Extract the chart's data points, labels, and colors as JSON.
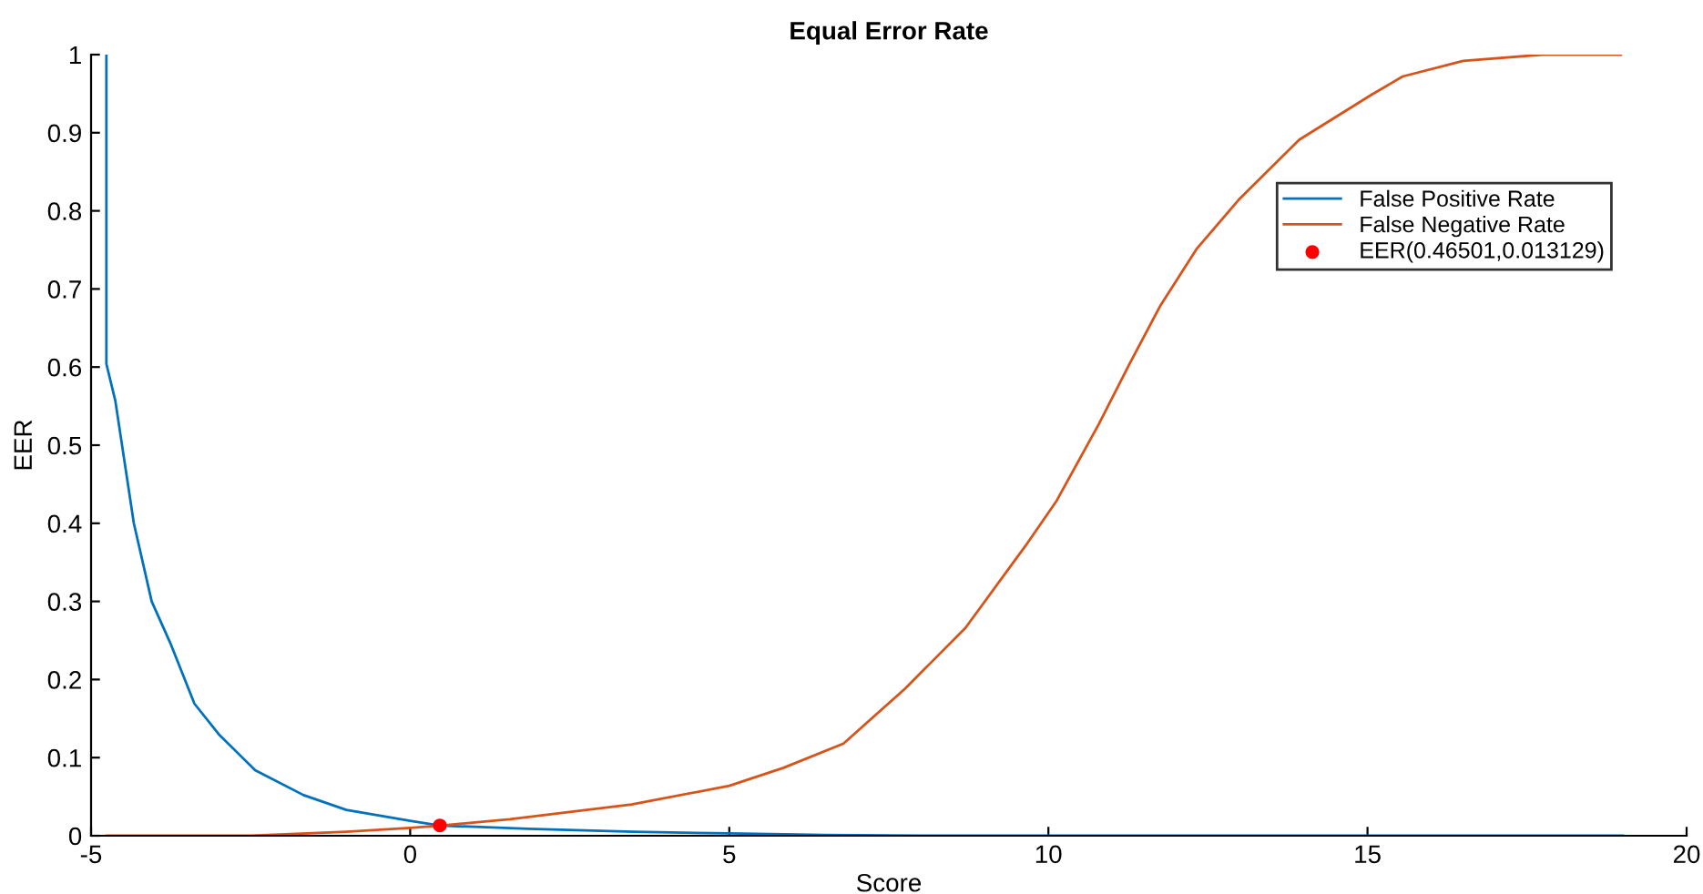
{
  "chart_data": {
    "type": "line",
    "title": "Equal Error Rate",
    "xlabel": "Score",
    "ylabel": "EER",
    "xlim": [
      -5,
      20
    ],
    "xticks": [
      -5,
      0,
      5,
      10,
      15,
      20
    ],
    "ylim": [
      0,
      1
    ],
    "yticks": [
      0,
      0.1,
      0.2,
      0.3,
      0.4,
      0.5,
      0.6,
      0.7,
      0.8,
      0.9,
      1
    ],
    "grid": false,
    "legend": "top right",
    "marker": "none",
    "line_style": "solid",
    "series": [
      {
        "name": "False Positive Rate",
        "color": "#0072bd",
        "x": [
          -4.76,
          -4.76,
          -4.62,
          -4.33,
          -4.05,
          -3.76,
          -3.38,
          -3.0,
          -2.43,
          -1.67,
          -1.0,
          0,
          0.47,
          1.85,
          3.5,
          5,
          6.5,
          8,
          12,
          19
        ],
        "values": [
          1.0,
          0.604,
          0.557,
          0.4,
          0.3,
          0.247,
          0.169,
          0.13,
          0.084,
          0.052,
          0.033,
          0.019,
          0.013,
          0.009,
          0.005,
          0.003,
          0.001,
          0,
          0,
          0
        ]
      },
      {
        "name": "False Negative Rate",
        "color": "#d95319",
        "x": [
          -4.76,
          -2.5,
          -1.0,
          0,
          0.47,
          1.56,
          3.47,
          5.0,
          5.85,
          6.79,
          7.75,
          8.7,
          9.64,
          10.13,
          10.79,
          11.27,
          11.75,
          12.32,
          12.98,
          13.93,
          15.07,
          15.55,
          16.5,
          17.74,
          18.97
        ],
        "values": [
          0,
          0,
          0.005,
          0.01,
          0.013,
          0.021,
          0.04,
          0.064,
          0.087,
          0.118,
          0.188,
          0.266,
          0.371,
          0.429,
          0.527,
          0.604,
          0.678,
          0.751,
          0.814,
          0.891,
          0.949,
          0.972,
          0.992,
          1.0,
          1.0
        ]
      },
      {
        "name": "EER(0.46501,0.013129)",
        "type": "scatter",
        "marker": "circle",
        "color": "#ff0000",
        "x": [
          0.46501
        ],
        "values": [
          0.013129
        ]
      }
    ]
  }
}
